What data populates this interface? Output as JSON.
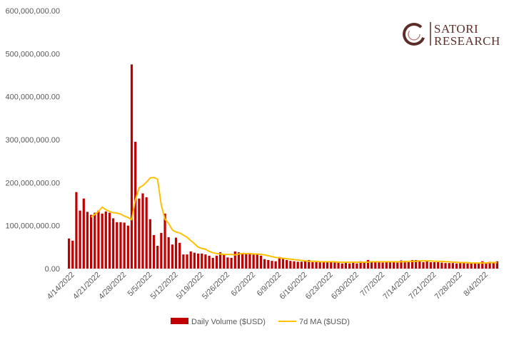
{
  "chart_data": {
    "type": "bar",
    "y_ticks": [
      "0.00",
      "100,000,000.00",
      "200,000,000.00",
      "300,000,000.00",
      "400,000,000.00",
      "500,000,000.00",
      "600,000,000.00"
    ],
    "ylim": [
      0,
      600000000
    ],
    "grid": false,
    "legend_position": "bottom",
    "x_tick_labels": [
      "4/14/2022",
      "4/21/2022",
      "4/28/2022",
      "5/5/2022",
      "5/12/2022",
      "5/19/2022",
      "5/26/2022",
      "6/2/2022",
      "6/9/2022",
      "6/16/2022",
      "6/23/2022",
      "6/30/2022",
      "7/7/2022",
      "7/14/2022",
      "7/21/2022",
      "7/28/2022",
      "8/4/2022"
    ],
    "x_start": "2022-04-13",
    "series": [
      {
        "name": "Daily Volume ($USD)",
        "kind": "bar",
        "color": "#c00000",
        "values": [
          70000000,
          65000000,
          178000000,
          135000000,
          163000000,
          132000000,
          125000000,
          130000000,
          135000000,
          128000000,
          133000000,
          130000000,
          117000000,
          108000000,
          108000000,
          107000000,
          100000000,
          475000000,
          295000000,
          163000000,
          175000000,
          166000000,
          115000000,
          78000000,
          53000000,
          83000000,
          128000000,
          73000000,
          56000000,
          72000000,
          60000000,
          33000000,
          33000000,
          40000000,
          37000000,
          35000000,
          35000000,
          33000000,
          30000000,
          25000000,
          30000000,
          38000000,
          33000000,
          26000000,
          25000000,
          40000000,
          38000000,
          35000000,
          35000000,
          35000000,
          33000000,
          33000000,
          30000000,
          22000000,
          20000000,
          18000000,
          17000000,
          27000000,
          25000000,
          20000000,
          18000000,
          17000000,
          16000000,
          16000000,
          17000000,
          20000000,
          15000000,
          15000000,
          15000000,
          15000000,
          15000000,
          15000000,
          14000000,
          15000000,
          12000000,
          15000000,
          12000000,
          16000000,
          12000000,
          17000000,
          14000000,
          20000000,
          15000000,
          15000000,
          15000000,
          14000000,
          17000000,
          15000000,
          15000000,
          14000000,
          19000000,
          18000000,
          15000000,
          20000000,
          20000000,
          17000000,
          15000000,
          17000000,
          15000000,
          15000000,
          15000000,
          14000000,
          13000000,
          13000000,
          13000000,
          12000000,
          13000000,
          13000000,
          12000000,
          13000000,
          12000000,
          12000000,
          17000000,
          14000000,
          16000000,
          13000000,
          17000000
        ]
      },
      {
        "name": "7d MA ($USD)",
        "kind": "line",
        "color": "#ffc000",
        "values": [
          null,
          null,
          null,
          null,
          null,
          null,
          120000000,
          126000000,
          133000000,
          143000000,
          137000000,
          133000000,
          130000000,
          129000000,
          127000000,
          122000000,
          119000000,
          114000000,
          160000000,
          188000000,
          193000000,
          201000000,
          211000000,
          212000000,
          208000000,
          148000000,
          115000000,
          105000000,
          90000000,
          85000000,
          83000000,
          78000000,
          73000000,
          65000000,
          58000000,
          50000000,
          47000000,
          45000000,
          40000000,
          37000000,
          35000000,
          34000000,
          33000000,
          33000000,
          33000000,
          32000000,
          34000000,
          35000000,
          35000000,
          35000000,
          34000000,
          34000000,
          33000000,
          32000000,
          30000000,
          28000000,
          26000000,
          25000000,
          24000000,
          23000000,
          22000000,
          21000000,
          20000000,
          19000000,
          18000000,
          17000000,
          17000000,
          17000000,
          16000000,
          16000000,
          16000000,
          16000000,
          16000000,
          15000000,
          15000000,
          15000000,
          15000000,
          15000000,
          15000000,
          15000000,
          15000000,
          15000000,
          16000000,
          16000000,
          16000000,
          16000000,
          16000000,
          16000000,
          16000000,
          16000000,
          16000000,
          16000000,
          17000000,
          17000000,
          17000000,
          18000000,
          18000000,
          18000000,
          18000000,
          17000000,
          17000000,
          17000000,
          16000000,
          16000000,
          15000000,
          15000000,
          14000000,
          14000000,
          14000000,
          13000000,
          13000000,
          13000000,
          13000000,
          13000000,
          14000000,
          14000000,
          14000000
        ]
      }
    ]
  },
  "logo": {
    "line1": "SATORI",
    "line2": "RESEARCH",
    "color": "#5c2e2a"
  }
}
